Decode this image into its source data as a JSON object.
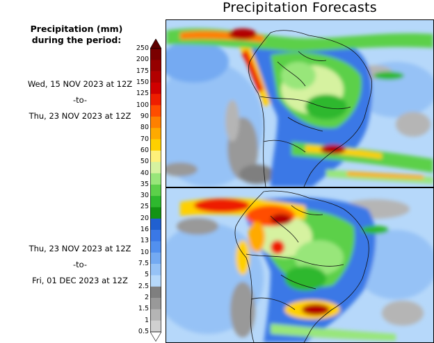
{
  "title": "Precipitation Forecasts",
  "legend": {
    "heading_line1": "Precipitation (mm)",
    "heading_line2": "during the period:",
    "levels": [
      "250",
      "200",
      "175",
      "150",
      "125",
      "100",
      "90",
      "80",
      "70",
      "60",
      "50",
      "40",
      "35",
      "30",
      "25",
      "20",
      "16",
      "13",
      "10",
      "7.5",
      "5",
      "2.5",
      "2",
      "1.5",
      "1",
      "0.5"
    ],
    "colors": [
      "#5e0000",
      "#7a0000",
      "#960000",
      "#b20000",
      "#d00000",
      "#ee1e00",
      "#ff4d00",
      "#ff8000",
      "#ffaa00",
      "#ffd000",
      "#fff07a",
      "#d6f2a0",
      "#98e67a",
      "#5cd04a",
      "#2eb82e",
      "#139313",
      "#2060d0",
      "#3a78e6",
      "#5290ee",
      "#74aaf2",
      "#96c2f6",
      "#b6d8fa",
      "#7f7f7f",
      "#999999",
      "#b5b5b5",
      "#d0d0d0",
      "#ffffff"
    ]
  },
  "periods": [
    {
      "start": "Wed, 15 NOV 2023 at 12Z",
      "sep": "-to-",
      "end": "Thu, 23 NOV 2023 at 12Z"
    },
    {
      "start": "Thu, 23 NOV 2023 at 12Z",
      "sep": "-to-",
      "end": "Fri, 01 DEC 2023 at 12Z"
    }
  ]
}
